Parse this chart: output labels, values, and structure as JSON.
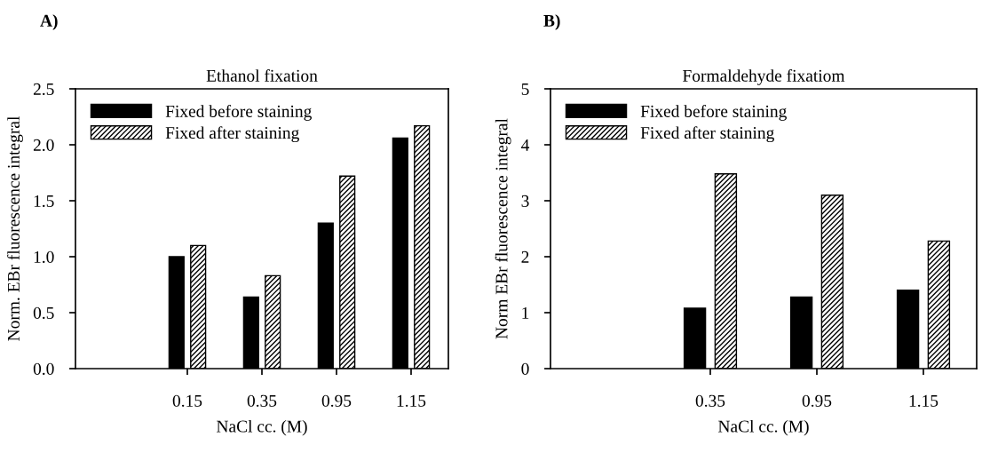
{
  "chart_data": [
    {
      "type": "bar",
      "title": "Ethanol fixation",
      "xlabel": "NaCl cc. (M)",
      "ylabel": "Norm. EBr fluorescence integral",
      "annotations": [
        "A)"
      ],
      "categories": [
        null,
        "0.15",
        "0.35",
        "0.95",
        "1.15"
      ],
      "series": [
        {
          "name": "Fixed before staining",
          "color": "#000000",
          "values": [
            null,
            1.0,
            0.64,
            1.3,
            2.06
          ]
        },
        {
          "name": "Fixed after staining",
          "color": "#000000",
          "values": [
            null,
            1.1,
            0.83,
            1.72,
            2.17
          ]
        }
      ],
      "ylim": [
        0,
        2.5
      ],
      "yticks": [
        {
          "value": 0,
          "label": "0.0"
        },
        0.5,
        {
          "value": 1,
          "label": "1.0"
        },
        1.5,
        {
          "value": 2,
          "label": "2.0"
        },
        2.5
      ],
      "grid": false,
      "legend": "top left"
    },
    {
      "type": "bar",
      "title": "Formaldehyde fixatiom",
      "xlabel": "NaCl cc. (M)",
      "ylabel": "Norm EBr fluorescence integral",
      "annotations": [
        "B)"
      ],
      "categories": [
        null,
        "0.35",
        "0.95",
        "1.15"
      ],
      "series": [
        {
          "name": "Fixed before staining",
          "color": "#000000",
          "values": [
            null,
            1.08,
            1.28,
            1.4
          ]
        },
        {
          "name": "Fixed after staining",
          "color": "#000000",
          "values": [
            null,
            3.48,
            3.1,
            2.28
          ]
        }
      ],
      "ylim": [
        0,
        5
      ],
      "yticks": [
        0,
        1,
        2,
        3,
        4,
        5
      ],
      "grid": false,
      "legend": "top left"
    }
  ]
}
